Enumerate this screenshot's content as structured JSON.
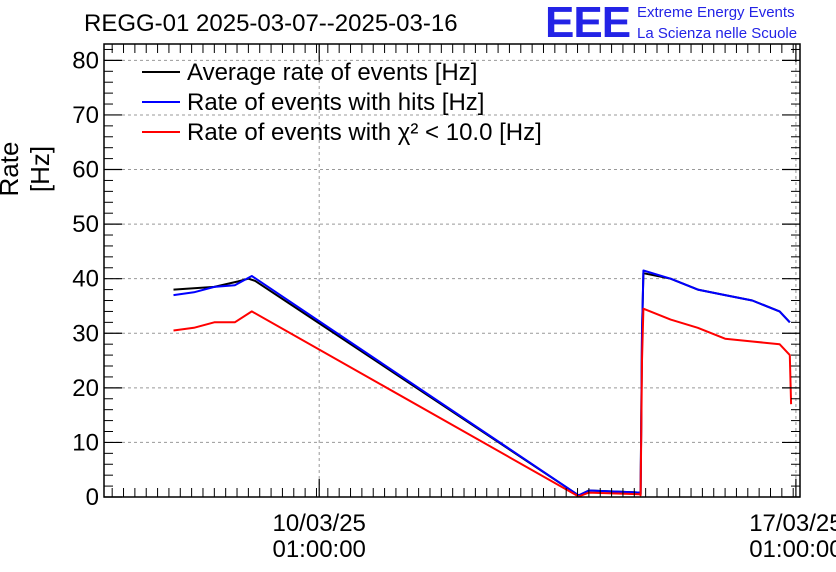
{
  "header": {
    "title": "REGG-01 2025-03-07--2025-03-16",
    "logo_letters": "EEE",
    "logo_line1": "Extreme Energy Events",
    "logo_line2": "La Scienza nelle Scuole"
  },
  "chart_data": {
    "type": "line",
    "title": "REGG-01 2025-03-07--2025-03-16",
    "xlabel": "",
    "ylabel": "Rate [Hz]",
    "ylim": [
      0,
      83
    ],
    "xlim_days_from_2025_03_07": [
      -0.12,
      10.1
    ],
    "x_ticks": [
      {
        "day": 3.04,
        "date": "10/03/25",
        "time": "01:00:00"
      },
      {
        "day": 10.04,
        "date": "17/03/25",
        "time": "01:00:00"
      }
    ],
    "y_ticks": [
      0,
      10,
      20,
      30,
      40,
      50,
      60,
      70,
      80
    ],
    "grid": true,
    "legend_position": "top-left",
    "series": [
      {
        "name": "Average rate of events [Hz]",
        "color": "#000000",
        "points": [
          [
            0.9,
            38
          ],
          [
            1.5,
            38.5
          ],
          [
            1.85,
            39.5
          ],
          [
            2.0,
            40
          ],
          [
            2.1,
            39.6
          ],
          [
            6.85,
            0.3
          ],
          [
            7.0,
            1.2
          ],
          [
            7.75,
            0.8
          ],
          [
            7.76,
            0.5
          ],
          [
            7.78,
            30
          ],
          [
            7.8,
            41
          ],
          [
            8.2,
            40
          ],
          [
            8.6,
            38
          ],
          [
            9.0,
            37
          ],
          [
            9.4,
            36
          ],
          [
            9.8,
            34
          ],
          [
            9.95,
            32
          ]
        ]
      },
      {
        "name": "Rate of events with hits [Hz]",
        "color": "#0000ff",
        "points": [
          [
            0.9,
            37
          ],
          [
            1.2,
            37.5
          ],
          [
            1.5,
            38.5
          ],
          [
            1.8,
            38.8
          ],
          [
            2.05,
            40.5
          ],
          [
            6.85,
            0.3
          ],
          [
            7.0,
            1.2
          ],
          [
            7.75,
            0.8
          ],
          [
            7.76,
            0.5
          ],
          [
            7.78,
            30
          ],
          [
            7.8,
            41.5
          ],
          [
            8.2,
            40
          ],
          [
            8.6,
            38
          ],
          [
            9.0,
            37
          ],
          [
            9.4,
            36
          ],
          [
            9.8,
            34
          ],
          [
            9.95,
            32
          ]
        ]
      },
      {
        "name": "Rate of events with χ² < 10.0 [Hz]",
        "color": "#ff0000",
        "points": [
          [
            0.9,
            30.5
          ],
          [
            1.2,
            31
          ],
          [
            1.5,
            32
          ],
          [
            1.8,
            32
          ],
          [
            2.05,
            34
          ],
          [
            6.85,
            0.1
          ],
          [
            7.0,
            0.8
          ],
          [
            7.75,
            0.5
          ],
          [
            7.76,
            0.3
          ],
          [
            7.78,
            25
          ],
          [
            7.8,
            34.5
          ],
          [
            8.2,
            32.5
          ],
          [
            8.6,
            31
          ],
          [
            9.0,
            29
          ],
          [
            9.4,
            28.5
          ],
          [
            9.8,
            28
          ],
          [
            9.95,
            26
          ],
          [
            9.97,
            17
          ]
        ]
      }
    ]
  }
}
